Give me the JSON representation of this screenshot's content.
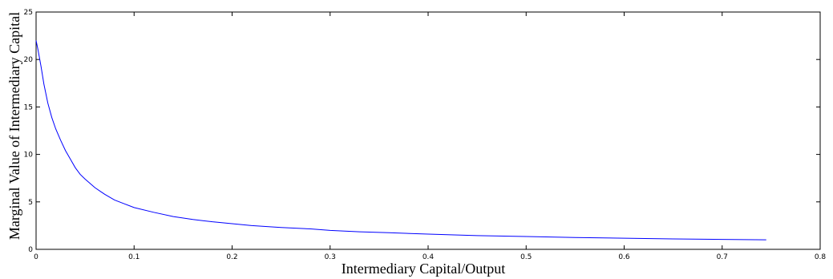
{
  "chart_data": {
    "type": "line",
    "title": "",
    "xlabel": "Intermediary Capital/Output",
    "ylabel": "Marginal Value of Intermediary Capital",
    "xlim": [
      0,
      0.8
    ],
    "ylim": [
      0,
      25
    ],
    "xticks": [
      "0",
      "0.1",
      "0.2",
      "0.3",
      "0.4",
      "0.5",
      "0.6",
      "0.7",
      "0.8"
    ],
    "yticks": [
      "0",
      "5",
      "10",
      "15",
      "20",
      "25"
    ],
    "grid": false,
    "legend": "none",
    "series": [
      {
        "color": "#0000ff",
        "x": [
          0.0,
          0.002,
          0.005,
          0.008,
          0.012,
          0.016,
          0.02,
          0.025,
          0.03,
          0.035,
          0.04,
          0.045,
          0.05,
          0.06,
          0.07,
          0.08,
          0.09,
          0.1,
          0.12,
          0.14,
          0.16,
          0.18,
          0.2,
          0.22,
          0.25,
          0.28,
          0.3,
          0.33,
          0.36,
          0.4,
          0.45,
          0.5,
          0.55,
          0.6,
          0.65,
          0.7,
          0.745
        ],
        "y": [
          22.0,
          21.0,
          19.3,
          17.4,
          15.4,
          13.9,
          12.7,
          11.5,
          10.4,
          9.5,
          8.6,
          7.9,
          7.4,
          6.5,
          5.8,
          5.2,
          4.8,
          4.4,
          3.9,
          3.45,
          3.15,
          2.9,
          2.7,
          2.5,
          2.3,
          2.15,
          2.0,
          1.85,
          1.75,
          1.6,
          1.45,
          1.35,
          1.25,
          1.17,
          1.1,
          1.05,
          1.0
        ]
      }
    ]
  }
}
